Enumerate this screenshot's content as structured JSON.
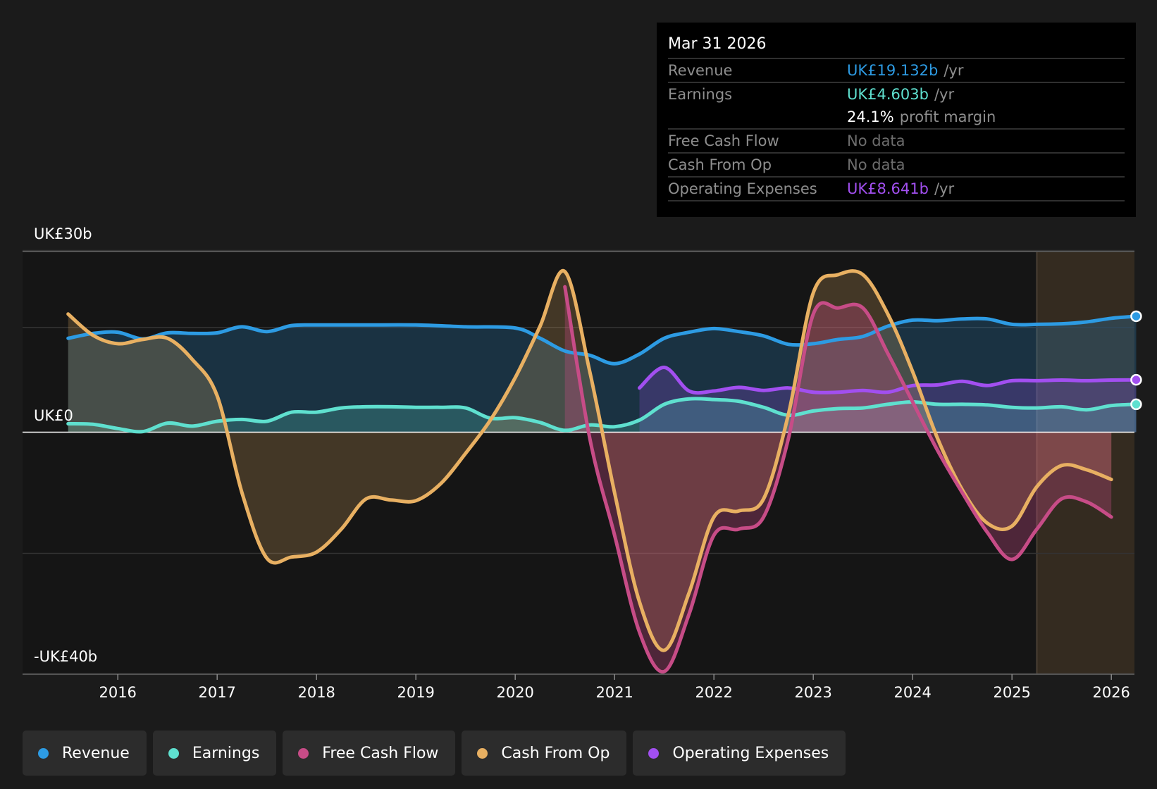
{
  "chart_data": {
    "type": "area",
    "y_labels": {
      "top": "UK£30b",
      "zero": "UK£0",
      "bottom": "-UK£40b"
    },
    "ylim": [
      -40,
      30
    ],
    "xlim": [
      2015.25,
      2026.25
    ],
    "x_ticks": [
      "2016",
      "2017",
      "2018",
      "2019",
      "2020",
      "2021",
      "2022",
      "2023",
      "2024",
      "2025",
      "2026"
    ],
    "forecast_start": 2025.25,
    "series": [
      {
        "name": "Revenue",
        "color": "#2d9be3",
        "x": [
          2015.5,
          2015.75,
          2016.0,
          2016.25,
          2016.5,
          2016.75,
          2017.0,
          2017.25,
          2017.5,
          2017.75,
          2018.0,
          2018.5,
          2019.0,
          2019.5,
          2020.0,
          2020.25,
          2020.5,
          2020.75,
          2021.0,
          2021.25,
          2021.5,
          2021.75,
          2022.0,
          2022.25,
          2022.5,
          2022.75,
          2023.0,
          2023.25,
          2023.5,
          2023.75,
          2024.0,
          2024.25,
          2024.5,
          2024.75,
          2025.0,
          2025.25,
          2025.5,
          2025.75,
          2026.0,
          2026.25
        ],
        "values": [
          15.5,
          16.3,
          16.5,
          15.4,
          16.4,
          16.3,
          16.4,
          17.4,
          16.6,
          17.6,
          17.7,
          17.7,
          17.7,
          17.4,
          17.2,
          15.5,
          13.4,
          12.7,
          11.3,
          12.9,
          15.5,
          16.5,
          17.1,
          16.6,
          15.9,
          14.5,
          14.6,
          15.3,
          15.8,
          17.5,
          18.5,
          18.4,
          18.7,
          18.7,
          17.8,
          17.8,
          17.9,
          18.2,
          18.8,
          19.132
        ]
      },
      {
        "name": "Earnings",
        "color": "#5fe0cf",
        "x": [
          2015.5,
          2015.75,
          2016.0,
          2016.25,
          2016.5,
          2016.75,
          2017.0,
          2017.25,
          2017.5,
          2017.75,
          2018.0,
          2018.25,
          2018.5,
          2018.75,
          2019.0,
          2019.25,
          2019.5,
          2019.75,
          2020.0,
          2020.25,
          2020.5,
          2020.75,
          2021.0,
          2021.25,
          2021.5,
          2021.75,
          2022.0,
          2022.25,
          2022.5,
          2022.75,
          2023.0,
          2023.25,
          2023.5,
          2023.75,
          2024.0,
          2024.25,
          2024.5,
          2024.75,
          2025.0,
          2025.25,
          2025.5,
          2025.75,
          2026.0,
          2026.25
        ],
        "values": [
          1.4,
          1.3,
          0.6,
          0.1,
          1.5,
          1.0,
          1.8,
          2.1,
          1.8,
          3.3,
          3.3,
          4.0,
          4.2,
          4.2,
          4.1,
          4.1,
          4.0,
          2.3,
          2.4,
          1.6,
          0.3,
          1.2,
          0.9,
          2.0,
          4.6,
          5.5,
          5.4,
          5.1,
          4.1,
          2.8,
          3.5,
          3.9,
          4.0,
          4.6,
          5.0,
          4.6,
          4.6,
          4.5,
          4.1,
          4.0,
          4.2,
          3.7,
          4.4,
          4.603
        ]
      },
      {
        "name": "Free Cash Flow",
        "color": "#c74c87",
        "x": [
          2020.5,
          2020.75,
          2021.0,
          2021.25,
          2021.5,
          2021.75,
          2022.0,
          2022.25,
          2022.5,
          2022.75,
          2023.0,
          2023.25,
          2023.5,
          2023.75,
          2024.0,
          2024.25,
          2024.5,
          2024.75,
          2025.0,
          2025.25,
          2025.5,
          2025.75,
          2026.0
        ],
        "values": [
          24,
          -1,
          -17,
          -33,
          -39.5,
          -30,
          -17,
          -16,
          -14,
          -1,
          19.5,
          20.5,
          20.5,
          13,
          5,
          -3,
          -10,
          -16.5,
          -21,
          -16,
          -11,
          -11.5,
          -14
        ]
      },
      {
        "name": "Cash From Op",
        "color": "#e8b062",
        "x": [
          2015.5,
          2015.75,
          2016.0,
          2016.25,
          2016.5,
          2016.75,
          2017.0,
          2017.25,
          2017.5,
          2017.75,
          2018.0,
          2018.25,
          2018.5,
          2018.75,
          2019.0,
          2019.25,
          2019.5,
          2019.75,
          2020.0,
          2020.25,
          2020.5,
          2020.75,
          2021.0,
          2021.25,
          2021.5,
          2021.75,
          2022.0,
          2022.25,
          2022.5,
          2022.75,
          2023.0,
          2023.25,
          2023.5,
          2023.75,
          2024.0,
          2024.25,
          2024.5,
          2024.75,
          2025.0,
          2025.25,
          2025.5,
          2025.75,
          2026.0
        ],
        "values": [
          19.5,
          16,
          14.6,
          15.3,
          15.5,
          12,
          6,
          -10,
          -20.8,
          -20.6,
          -19.8,
          -16,
          -11,
          -11.2,
          -11.3,
          -8.5,
          -3.5,
          2,
          9,
          17.5,
          26.5,
          10,
          -10,
          -28,
          -36,
          -26.5,
          -14,
          -13,
          -11,
          3,
          23,
          26,
          26,
          19.5,
          10,
          -1,
          -9.5,
          -15,
          -15.5,
          -9,
          -5.5,
          -6.2,
          -7.8
        ]
      },
      {
        "name": "Operating Expenses",
        "color": "#a24ff0",
        "x": [
          2021.25,
          2021.5,
          2021.75,
          2022.0,
          2022.25,
          2022.5,
          2022.75,
          2023.0,
          2023.25,
          2023.5,
          2023.75,
          2024.0,
          2024.25,
          2024.5,
          2024.75,
          2025.0,
          2025.25,
          2025.5,
          2025.75,
          2026.0,
          2026.25
        ],
        "values": [
          7.3,
          10.7,
          6.8,
          6.8,
          7.4,
          6.9,
          7.3,
          6.6,
          6.6,
          6.9,
          6.6,
          7.7,
          7.8,
          8.4,
          7.7,
          8.5,
          8.5,
          8.6,
          8.5,
          8.6,
          8.641
        ]
      }
    ]
  },
  "tooltip": {
    "date": "Mar 31 2026",
    "rows": [
      {
        "label": "Revenue",
        "value": "UK£19.132b",
        "unit": "/yr",
        "color": "#2d9be3"
      },
      {
        "label": "Earnings",
        "value": "UK£4.603b",
        "unit": "/yr",
        "color": "#5fe0cf"
      },
      {
        "label": "",
        "value": "24.1%",
        "unit": "profit margin",
        "color": "#ffffff"
      },
      {
        "label": "Free Cash Flow",
        "value": "No data",
        "unit": "",
        "color": "#6d6d6d"
      },
      {
        "label": "Cash From Op",
        "value": "No data",
        "unit": "",
        "color": "#6d6d6d"
      },
      {
        "label": "Operating Expenses",
        "value": "UK£8.641b",
        "unit": "/yr",
        "color": "#a24ff0"
      }
    ]
  },
  "legend": [
    {
      "label": "Revenue",
      "color": "#2d9be3"
    },
    {
      "label": "Earnings",
      "color": "#5fe0cf"
    },
    {
      "label": "Free Cash Flow",
      "color": "#c74c87"
    },
    {
      "label": "Cash From Op",
      "color": "#e8b062"
    },
    {
      "label": "Operating Expenses",
      "color": "#a24ff0"
    }
  ]
}
